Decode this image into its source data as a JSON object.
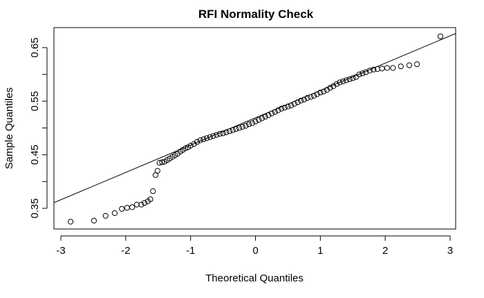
{
  "chart_data": {
    "type": "scatter",
    "title": "RFI Normality Check",
    "xlabel": "Theoretical Quantiles",
    "ylabel": "Sample Quantiles",
    "xlim": [
      -3,
      3
    ],
    "ylim": [
      0.315,
      0.685
    ],
    "xticks": [
      -3,
      -2,
      -1,
      0,
      1,
      2,
      3
    ],
    "xtick_labels": [
      "-3",
      "-2",
      "-1",
      "0",
      "1",
      "2",
      "3"
    ],
    "yticks": [
      0.35,
      0.4,
      0.45,
      0.5,
      0.55,
      0.6,
      0.65
    ],
    "ytick_labels": [
      "0.35",
      "",
      "0.45",
      "",
      "0.55",
      "",
      "0.65"
    ],
    "grid": false,
    "reference_line": {
      "slope": 0.051,
      "intercept": 0.519
    },
    "marker": "open-circle",
    "points": [
      [
        -2.85,
        0.325
      ],
      [
        -2.49,
        0.327
      ],
      [
        -2.31,
        0.336
      ],
      [
        -2.17,
        0.341
      ],
      [
        -2.06,
        0.349
      ],
      [
        -1.98,
        0.351
      ],
      [
        -1.9,
        0.352
      ],
      [
        -1.83,
        0.357
      ],
      [
        -1.76,
        0.357
      ],
      [
        -1.71,
        0.36
      ],
      [
        -1.66,
        0.363
      ],
      [
        -1.62,
        0.367
      ],
      [
        -1.58,
        0.382
      ],
      [
        -1.54,
        0.412
      ],
      [
        -1.51,
        0.42
      ],
      [
        -1.48,
        0.435
      ],
      [
        -1.44,
        0.436
      ],
      [
        -1.4,
        0.437
      ],
      [
        -1.36,
        0.44
      ],
      [
        -1.32,
        0.443
      ],
      [
        -1.28,
        0.446
      ],
      [
        -1.24,
        0.449
      ],
      [
        -1.2,
        0.452
      ],
      [
        -1.16,
        0.456
      ],
      [
        -1.12,
        0.459
      ],
      [
        -1.08,
        0.462
      ],
      [
        -1.04,
        0.464
      ],
      [
        -1.0,
        0.467
      ],
      [
        -0.95,
        0.47
      ],
      [
        -0.9,
        0.474
      ],
      [
        -0.85,
        0.477
      ],
      [
        -0.8,
        0.479
      ],
      [
        -0.75,
        0.481
      ],
      [
        -0.7,
        0.483
      ],
      [
        -0.65,
        0.485
      ],
      [
        -0.6,
        0.487
      ],
      [
        -0.55,
        0.489
      ],
      [
        -0.5,
        0.49
      ],
      [
        -0.45,
        0.492
      ],
      [
        -0.4,
        0.494
      ],
      [
        -0.35,
        0.496
      ],
      [
        -0.3,
        0.498
      ],
      [
        -0.25,
        0.5
      ],
      [
        -0.2,
        0.502
      ],
      [
        -0.15,
        0.504
      ],
      [
        -0.1,
        0.507
      ],
      [
        -0.05,
        0.509
      ],
      [
        0.0,
        0.512
      ],
      [
        0.05,
        0.515
      ],
      [
        0.1,
        0.518
      ],
      [
        0.15,
        0.521
      ],
      [
        0.2,
        0.524
      ],
      [
        0.25,
        0.527
      ],
      [
        0.3,
        0.53
      ],
      [
        0.35,
        0.533
      ],
      [
        0.4,
        0.536
      ],
      [
        0.45,
        0.538
      ],
      [
        0.5,
        0.54
      ],
      [
        0.55,
        0.542
      ],
      [
        0.6,
        0.545
      ],
      [
        0.65,
        0.548
      ],
      [
        0.7,
        0.551
      ],
      [
        0.75,
        0.553
      ],
      [
        0.8,
        0.556
      ],
      [
        0.85,
        0.558
      ],
      [
        0.9,
        0.56
      ],
      [
        0.95,
        0.563
      ],
      [
        1.0,
        0.566
      ],
      [
        1.05,
        0.568
      ],
      [
        1.1,
        0.571
      ],
      [
        1.15,
        0.575
      ],
      [
        1.2,
        0.578
      ],
      [
        1.25,
        0.582
      ],
      [
        1.3,
        0.585
      ],
      [
        1.35,
        0.587
      ],
      [
        1.4,
        0.589
      ],
      [
        1.45,
        0.591
      ],
      [
        1.5,
        0.593
      ],
      [
        1.55,
        0.595
      ],
      [
        1.6,
        0.6
      ],
      [
        1.65,
        0.602
      ],
      [
        1.7,
        0.604
      ],
      [
        1.76,
        0.607
      ],
      [
        1.82,
        0.609
      ],
      [
        1.88,
        0.61
      ],
      [
        1.95,
        0.611
      ],
      [
        2.03,
        0.612
      ],
      [
        2.12,
        0.612
      ],
      [
        2.24,
        0.615
      ],
      [
        2.37,
        0.617
      ],
      [
        2.49,
        0.619
      ],
      [
        2.85,
        0.671
      ]
    ]
  }
}
